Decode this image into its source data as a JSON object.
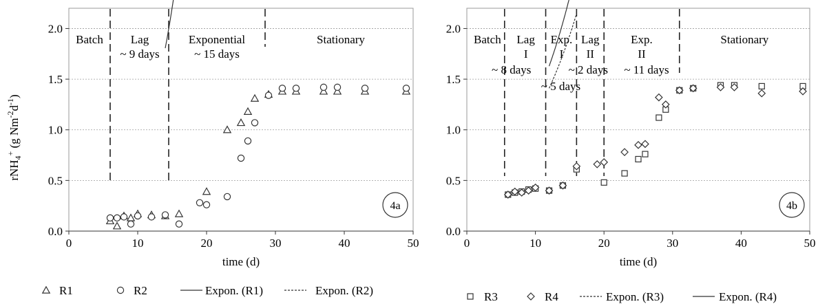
{
  "ylabel_main": "rNH",
  "ylabel_sub": "4",
  "ylabel_sup": "+",
  "ylabel_rest": " (g Nm",
  "ylabel_exp1": "-2",
  "ylabel_d": "d",
  "ylabel_exp2": "-1",
  "ylabel_close": ")",
  "chart_data": [
    {
      "type": "scatter",
      "badge": "4a",
      "xlabel": "time (d)",
      "xlim": [
        0,
        50
      ],
      "ylim": [
        0,
        2.2
      ],
      "xticks": [
        "0",
        "10",
        "20",
        "30",
        "40",
        "50"
      ],
      "yticks": [
        "0.0",
        "0.5",
        "1.0",
        "1.5",
        "2.0"
      ],
      "grid": "horizontal dashed",
      "legend": "bottom",
      "phase_lines": [
        6,
        14.5,
        28.5
      ],
      "phases": [
        {
          "lines": [
            "Batch"
          ],
          "x": 3
        },
        {
          "lines": [
            "Lag",
            "~ 9 days"
          ],
          "x": 10.3
        },
        {
          "lines": [
            "Exponential",
            "~ 15 days"
          ],
          "x": 21.5
        },
        {
          "lines": [
            "Stationary"
          ],
          "x": 39.5
        }
      ],
      "series": [
        {
          "name": "R1",
          "marker": "triangle",
          "points": [
            [
              6,
              0.1
            ],
            [
              7,
              0.05
            ],
            [
              8,
              0.15
            ],
            [
              9,
              0.13
            ],
            [
              10,
              0.17
            ],
            [
              12,
              0.16
            ],
            [
              14,
              0.15
            ],
            [
              16,
              0.17
            ],
            [
              20,
              0.39
            ],
            [
              23,
              1.0
            ],
            [
              25,
              1.07
            ],
            [
              26,
              1.18
            ],
            [
              27,
              1.31
            ],
            [
              29,
              1.35
            ],
            [
              31,
              1.38
            ],
            [
              33,
              1.38
            ],
            [
              37,
              1.38
            ],
            [
              39,
              1.38
            ],
            [
              43,
              1.38
            ],
            [
              49,
              1.38
            ]
          ]
        },
        {
          "name": "R2",
          "marker": "circle",
          "points": [
            [
              6,
              0.13
            ],
            [
              7,
              0.13
            ],
            [
              8,
              0.14
            ],
            [
              9,
              0.07
            ],
            [
              10,
              0.15
            ],
            [
              12,
              0.14
            ],
            [
              14,
              0.16
            ],
            [
              16,
              0.07
            ],
            [
              19,
              0.28
            ],
            [
              20,
              0.26
            ],
            [
              23,
              0.34
            ],
            [
              25,
              0.72
            ],
            [
              26,
              0.89
            ],
            [
              27,
              1.07
            ],
            [
              29,
              1.34
            ],
            [
              31,
              1.41
            ],
            [
              33,
              1.41
            ],
            [
              37,
              1.42
            ],
            [
              39,
              1.42
            ],
            [
              43,
              1.41
            ],
            [
              49,
              1.41
            ]
          ]
        }
      ],
      "trendlines": [
        {
          "name": "Expon. (R1)",
          "style": "solid",
          "a": 0.11,
          "b": 0.1999,
          "x0": 14,
          "x1": 27.5
        },
        {
          "name": "Expon. (R2)",
          "style": "dashed",
          "a": 0.0504,
          "b": 0.2396,
          "x0": 16,
          "x1": 28.9
        }
      ]
    },
    {
      "type": "scatter",
      "badge": "4b",
      "xlabel": "time (d)",
      "xlim": [
        0,
        50
      ],
      "ylim": [
        0,
        2.2
      ],
      "xticks": [
        "0",
        "10",
        "20",
        "30",
        "40",
        "50"
      ],
      "yticks": [
        "0.0",
        "0.5",
        "1.0",
        "1.5",
        "2.0"
      ],
      "grid": "horizontal dashed",
      "legend": "bottom",
      "phase_lines": [
        5.5,
        11.5,
        16,
        20,
        31
      ],
      "phases": [
        {
          "lines": [
            "Batch"
          ],
          "x": 3
        },
        {
          "lines": [
            "Lag",
            "I"
          ],
          "x": 8.6
        },
        {
          "lines": [
            "Exp.",
            "I"
          ],
          "x": 13.8
        },
        {
          "lines": [
            "Lag",
            "II"
          ],
          "x": 18
        },
        {
          "lines": [
            "Exp.",
            "II"
          ],
          "x": 25.5
        },
        {
          "lines": [
            "Stationary"
          ],
          "x": 40.5
        }
      ],
      "durations": [
        {
          "text": "~ 8 days",
          "x": 6.5
        },
        {
          "text": "~ 2 days",
          "x": 17.7
        },
        {
          "text": "~ 11 days",
          "x": 26.2
        },
        {
          "text": "~ 5 days",
          "x": 13.7
        }
      ],
      "series": [
        {
          "name": "R3",
          "marker": "square",
          "points": [
            [
              6,
              0.36
            ],
            [
              7,
              0.38
            ],
            [
              8,
              0.39
            ],
            [
              9,
              0.41
            ],
            [
              10,
              0.42
            ],
            [
              12,
              0.4
            ],
            [
              14,
              0.45
            ],
            [
              16,
              0.61
            ],
            [
              20,
              0.48
            ],
            [
              23,
              0.57
            ],
            [
              25,
              0.71
            ],
            [
              26,
              0.76
            ],
            [
              28,
              1.12
            ],
            [
              29,
              1.2
            ],
            [
              31,
              1.39
            ],
            [
              33,
              1.41
            ],
            [
              37,
              1.44
            ],
            [
              39,
              1.44
            ],
            [
              43,
              1.43
            ],
            [
              49,
              1.43
            ]
          ]
        },
        {
          "name": "R4",
          "marker": "diamond",
          "points": [
            [
              6,
              0.36
            ],
            [
              7,
              0.39
            ],
            [
              8,
              0.38
            ],
            [
              9,
              0.4
            ],
            [
              10,
              0.43
            ],
            [
              12,
              0.4
            ],
            [
              14,
              0.45
            ],
            [
              16,
              0.64
            ],
            [
              19,
              0.66
            ],
            [
              20,
              0.68
            ],
            [
              23,
              0.78
            ],
            [
              25,
              0.85
            ],
            [
              26,
              0.86
            ],
            [
              28,
              1.32
            ],
            [
              29,
              1.25
            ],
            [
              31,
              1.39
            ],
            [
              33,
              1.41
            ],
            [
              37,
              1.42
            ],
            [
              39,
              1.42
            ],
            [
              43,
              1.36
            ],
            [
              49,
              1.38
            ]
          ]
        }
      ],
      "trendlines": [
        {
          "name": "Expon. (R3)",
          "style": "dashed",
          "a": 0.4527,
          "b": 0.1034,
          "x0": 20,
          "x1": 31
        },
        {
          "name": "Expon. (R4)",
          "style": "solid",
          "a": 0.6445,
          "b": 0.0695,
          "x0": 20,
          "x1": 31
        }
      ],
      "trendlines_expI": [
        {
          "style": "dashed",
          "a": 0.4,
          "b": 0.105,
          "x0": 12,
          "x1": 16
        },
        {
          "style": "solid",
          "a": 0.4,
          "b": 0.117,
          "x0": 12,
          "x1": 16
        }
      ]
    }
  ]
}
